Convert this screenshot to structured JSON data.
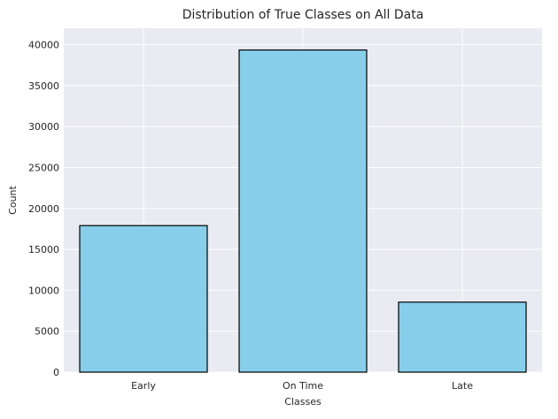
{
  "chart_data": {
    "type": "bar",
    "title": "Distribution of True Classes on All Data",
    "xlabel": "Classes",
    "ylabel": "Count",
    "categories": [
      "Early",
      "On Time",
      "Late"
    ],
    "values": [
      17900,
      39350,
      8550
    ],
    "ylim": [
      0,
      42000
    ],
    "yticks": [
      0,
      5000,
      10000,
      15000,
      20000,
      25000,
      30000,
      35000,
      40000
    ],
    "grid": true,
    "legend": "none",
    "colors": {
      "bar_fill": "#87CEEB",
      "bar_edge": "#000000",
      "plot_background": "#EAEAF2",
      "grid": "#FFFFFF"
    }
  }
}
